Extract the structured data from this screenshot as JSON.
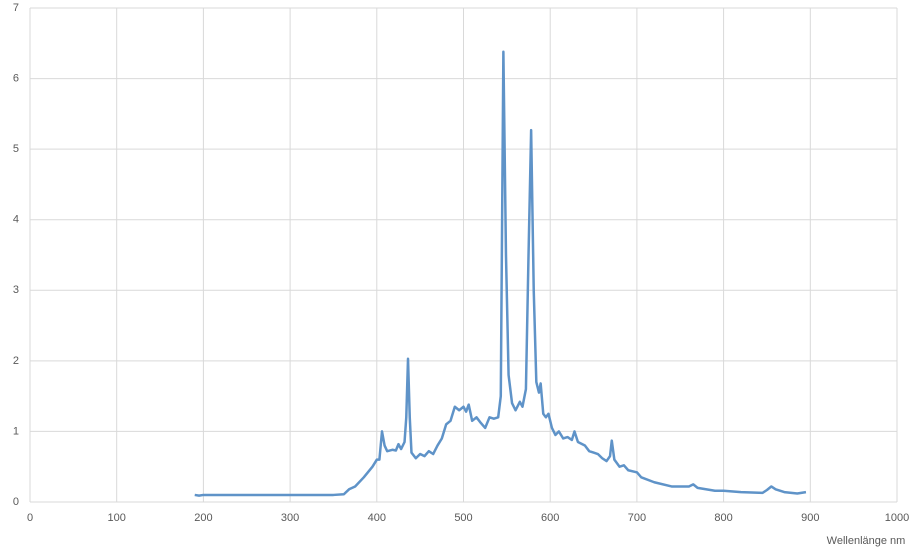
{
  "chart_data": {
    "type": "line",
    "x_label": "Wellenlänge nm",
    "color": "#5f93c8",
    "grid": true,
    "xlim": [
      0,
      1000
    ],
    "xticks": [
      0,
      100,
      200,
      300,
      400,
      500,
      600,
      700,
      800,
      900,
      1000
    ],
    "ylim": [
      0,
      7
    ],
    "yticks": [
      0,
      1,
      2,
      3,
      4,
      5,
      6,
      7
    ],
    "x": [
      190,
      195,
      200,
      250,
      300,
      350,
      362,
      368,
      375,
      385,
      395,
      400,
      403,
      406,
      409,
      412,
      418,
      422,
      425,
      428,
      432,
      434,
      436,
      438,
      440,
      445,
      450,
      455,
      460,
      465,
      470,
      475,
      480,
      485,
      490,
      495,
      500,
      503,
      506,
      510,
      515,
      520,
      525,
      530,
      535,
      540,
      543,
      546,
      549,
      552,
      556,
      560,
      565,
      568,
      572,
      575,
      578,
      581,
      584,
      587,
      589,
      592,
      595,
      598,
      602,
      606,
      610,
      615,
      620,
      625,
      628,
      632,
      640,
      645,
      650,
      655,
      660,
      665,
      669,
      671,
      674,
      680,
      685,
      690,
      700,
      705,
      720,
      740,
      760,
      765,
      770,
      790,
      800,
      820,
      845,
      850,
      855,
      860,
      870,
      885,
      895
    ],
    "values": [
      0.1,
      0.09,
      0.1,
      0.1,
      0.1,
      0.1,
      0.11,
      0.18,
      0.22,
      0.35,
      0.5,
      0.6,
      0.6,
      1.0,
      0.8,
      0.72,
      0.74,
      0.73,
      0.82,
      0.75,
      0.85,
      1.2,
      2.03,
      1.2,
      0.7,
      0.62,
      0.68,
      0.65,
      0.72,
      0.68,
      0.8,
      0.9,
      1.1,
      1.15,
      1.35,
      1.3,
      1.35,
      1.28,
      1.38,
      1.15,
      1.2,
      1.12,
      1.05,
      1.2,
      1.18,
      1.2,
      1.5,
      6.38,
      3.5,
      1.8,
      1.4,
      1.3,
      1.42,
      1.35,
      1.6,
      3.5,
      5.27,
      3.0,
      1.7,
      1.55,
      1.68,
      1.25,
      1.2,
      1.25,
      1.05,
      0.95,
      1.0,
      0.9,
      0.92,
      0.88,
      1.0,
      0.85,
      0.8,
      0.72,
      0.7,
      0.68,
      0.62,
      0.58,
      0.65,
      0.87,
      0.6,
      0.5,
      0.52,
      0.45,
      0.42,
      0.35,
      0.28,
      0.22,
      0.22,
      0.25,
      0.2,
      0.16,
      0.16,
      0.14,
      0.13,
      0.17,
      0.22,
      0.18,
      0.14,
      0.12,
      0.14
    ]
  }
}
